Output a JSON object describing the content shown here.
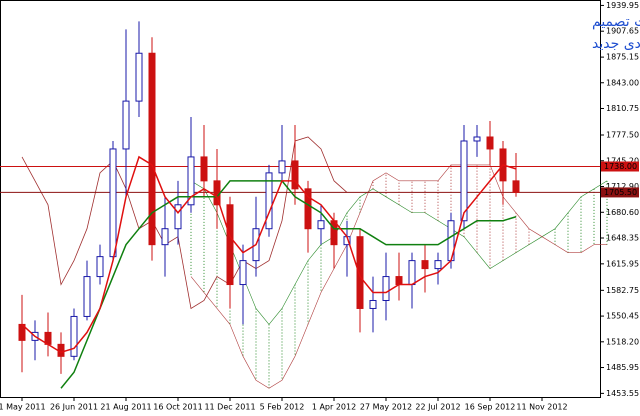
{
  "chart_data": {
    "type": "candlestick",
    "title_lines": [
      "پیش بینی روند افزایشی بها در صورت تصمیم",
      "فدرال رزرو به اتخاذ بسته محرک اقتصادی جدید"
    ],
    "categories": [
      "1 May 2011",
      null,
      null,
      null,
      "26 Jun 2011",
      null,
      null,
      null,
      "21 Aug 2011",
      null,
      null,
      null,
      "16 Oct 2011",
      null,
      null,
      null,
      "11 Dec 2011",
      null,
      null,
      null,
      "5 Feb 2012",
      null,
      null,
      null,
      "1 Apr 2012",
      null,
      null,
      null,
      "27 May 2012",
      null,
      null,
      null,
      "22 Jul 2012",
      null,
      null,
      null,
      "16 Sep 2012",
      null,
      null,
      null,
      "11 Nov 2012",
      null,
      null,
      null,
      null,
      null
    ],
    "open": [
      1540,
      1520,
      1530,
      1515,
      1500,
      1550,
      1600,
      1625,
      1760,
      1820,
      1880,
      1640,
      1660,
      1690,
      1750,
      1720,
      1690,
      1590,
      1620,
      1660,
      1730,
      1745,
      1710,
      1660,
      1670,
      1640,
      1650,
      1560,
      1570,
      1600,
      1590,
      1620,
      1610,
      1620,
      1670,
      1770,
      1775,
      1760,
      1720,
      null,
      null,
      null,
      null,
      null,
      null,
      null
    ],
    "high": [
      1577,
      1545,
      1555,
      1530,
      1560,
      1620,
      1640,
      1770,
      1910,
      1920,
      1900,
      1700,
      1720,
      1800,
      1790,
      1760,
      1700,
      1640,
      1700,
      1740,
      1790,
      1790,
      1720,
      1690,
      1680,
      1670,
      1660,
      1600,
      1630,
      1630,
      1630,
      1640,
      1630,
      1680,
      1790,
      1790,
      1795,
      1770,
      1755,
      null,
      null,
      null,
      null,
      null,
      null,
      null
    ],
    "low": [
      1480,
      1495,
      1500,
      1478,
      1495,
      1545,
      1590,
      1620,
      1700,
      1800,
      1620,
      1600,
      1640,
      1680,
      1700,
      1660,
      1560,
      1540,
      1600,
      1650,
      1720,
      1690,
      1630,
      1640,
      1610,
      1600,
      1530,
      1530,
      1545,
      1570,
      1560,
      1580,
      1590,
      1610,
      1660,
      1750,
      1740,
      1690,
      1700,
      null,
      null,
      null,
      null,
      null,
      null,
      null
    ],
    "close": [
      1520,
      1530,
      1515,
      1500,
      1550,
      1600,
      1625,
      1760,
      1820,
      1880,
      1640,
      1660,
      1690,
      1750,
      1720,
      1690,
      1590,
      1620,
      1660,
      1730,
      1745,
      1710,
      1660,
      1670,
      1640,
      1650,
      1560,
      1570,
      1600,
      1590,
      1620,
      1610,
      1620,
      1670,
      1770,
      1775,
      1760,
      1720,
      1705.5,
      null,
      null,
      null,
      null,
      null,
      null,
      null
    ],
    "tenkan": [
      1540,
      1525,
      1515,
      1505,
      1510,
      1530,
      1560,
      1620,
      1700,
      1750,
      1740,
      1700,
      1680,
      1700,
      1710,
      1700,
      1650,
      1630,
      1640,
      1680,
      1720,
      1720,
      1700,
      1690,
      1670,
      1650,
      1600,
      1580,
      1580,
      1590,
      1590,
      1600,
      1605,
      1620,
      1680,
      1700,
      1720,
      1740,
      1735,
      null,
      null,
      null,
      null,
      null,
      null,
      null
    ],
    "kijun": [
      null,
      null,
      null,
      1460,
      1480,
      1520,
      1560,
      1600,
      1640,
      1660,
      1680,
      1690,
      1700,
      1700,
      1700,
      1700,
      1720,
      1720,
      1720,
      1720,
      1720,
      1700,
      1690,
      1680,
      1660,
      1660,
      1660,
      1650,
      1640,
      1640,
      1640,
      1640,
      1640,
      1650,
      1660,
      1670,
      1670,
      1670,
      1675,
      null,
      null,
      null,
      null,
      null,
      null,
      null
    ],
    "chikou": [
      1750,
      1720,
      1690,
      1590,
      1620,
      1660,
      1730,
      1745,
      1710,
      1660,
      1670,
      1640,
      1650,
      1560,
      1570,
      1600,
      1590,
      1620,
      1610,
      1620,
      1670,
      1770,
      1775,
      1760,
      1720,
      1705.5,
      null,
      null,
      null,
      null,
      null,
      null,
      null,
      null,
      null,
      null,
      null,
      null,
      null,
      null,
      null,
      null,
      null,
      null,
      null,
      null
    ],
    "span_a": [
      null,
      null,
      null,
      null,
      null,
      null,
      null,
      null,
      null,
      null,
      null,
      null,
      null,
      1720,
      1710,
      1680,
      1640,
      1600,
      1560,
      1540,
      1560,
      1590,
      1620,
      1640,
      1650,
      1680,
      1700,
      1710,
      1700,
      1690,
      1680,
      1680,
      1670,
      1660,
      1650,
      1630,
      1610,
      1620,
      1630,
      1640,
      1650,
      1660,
      1680,
      1700,
      1710,
      1720
    ],
    "span_b": [
      null,
      null,
      null,
      null,
      null,
      null,
      null,
      null,
      null,
      null,
      null,
      null,
      null,
      1600,
      1580,
      1560,
      1540,
      1500,
      1470,
      1460,
      1470,
      1500,
      1540,
      1580,
      1610,
      1640,
      1680,
      1720,
      1730,
      1720,
      1720,
      1720,
      1720,
      1740,
      1740,
      1740,
      1740,
      1700,
      1680,
      1660,
      1650,
      1640,
      1630,
      1630,
      1640,
      1640
    ],
    "colors": {
      "up": "#1a1aa8",
      "down": "#cc1111",
      "tenkan": "#e01010",
      "kijun": "#108010",
      "chikou": "#a03030",
      "cloud_up": "#2a8a2a",
      "cloud_down": "#b04040",
      "title": "#1f4fd0"
    },
    "ylim": [
      1449,
      1943
    ],
    "yticks": [
      {
        "value": 1453.55,
        "label": "1453.55"
      },
      {
        "value": 1485.95,
        "label": "1485.95"
      },
      {
        "value": 1518.2,
        "label": "1518.20"
      },
      {
        "value": 1550.45,
        "label": "1550.45"
      },
      {
        "value": 1582.75,
        "label": "1582.75"
      },
      {
        "value": 1615.95,
        "label": "1615.95"
      },
      {
        "value": 1648.35,
        "label": "1648.35"
      },
      {
        "value": 1680.6,
        "label": "1680.60"
      },
      {
        "value": 1712.9,
        "label": "1712.90"
      },
      {
        "value": 1745.2,
        "label": "1745.20"
      },
      {
        "value": 1777.5,
        "label": "1777.50"
      },
      {
        "value": 1810.75,
        "label": "1810.75"
      },
      {
        "value": 1843,
        "label": "1843.00"
      },
      {
        "value": 1875.15,
        "label": "1875.15"
      },
      {
        "value": 1907.65,
        "label": "1907.65"
      },
      {
        "value": 1939.95,
        "label": "1939.95"
      }
    ],
    "price_lines": [
      {
        "value": 1738,
        "label": "1738.00",
        "color": "#cc1111"
      },
      {
        "value": 1705.5,
        "label": "1705.50",
        "color": "#8b1010"
      }
    ]
  }
}
